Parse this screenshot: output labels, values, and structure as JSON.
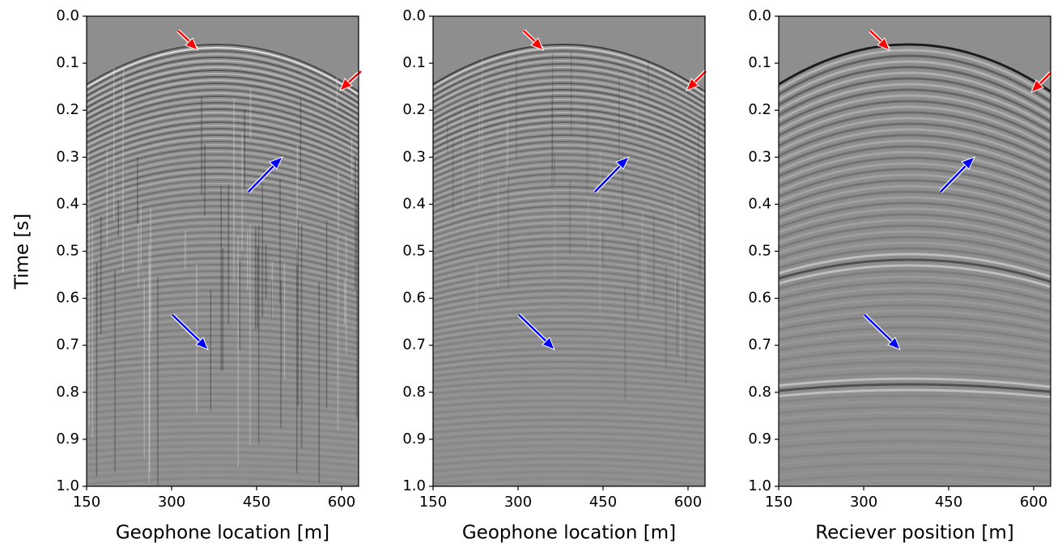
{
  "chart_data": [
    {
      "type": "image",
      "colormap": "gray",
      "x_label": "Geophone location [m]",
      "y_label": "Time [s]",
      "xlim": [
        150,
        630
      ],
      "ylim": [
        0,
        1
      ],
      "y_inverted": true,
      "xticks": [
        150,
        300,
        450,
        600
      ],
      "yticks": [
        {
          "value": 0,
          "label": "0.0"
        },
        0.1,
        0.2,
        0.3,
        0.4,
        0.5,
        0.6,
        0.7,
        0.8,
        0.9,
        {
          "value": 1,
          "label": "1.0"
        }
      ]
    },
    {
      "type": "image",
      "colormap": "gray",
      "x_label": "Geophone location [m]",
      "xlim": [
        150,
        630
      ],
      "ylim": [
        0,
        1
      ],
      "y_inverted": true,
      "xticks": [
        150,
        300,
        450,
        600
      ],
      "yticks": [
        {
          "value": 0,
          "label": "0.0"
        },
        0.1,
        0.2,
        0.3,
        0.4,
        0.5,
        0.6,
        0.7,
        0.8,
        0.9,
        {
          "value": 1,
          "label": "1.0"
        }
      ]
    },
    {
      "type": "image",
      "colormap": "gray",
      "x_label": "Reciever position [m]",
      "xlim": [
        150,
        630
      ],
      "ylim": [
        0,
        1
      ],
      "y_inverted": true,
      "xticks": [
        150,
        300,
        450,
        600
      ],
      "yticks": [
        {
          "value": 0,
          "label": "0.0"
        },
        0.1,
        0.2,
        0.3,
        0.4,
        0.5,
        0.6,
        0.7,
        0.8,
        0.9,
        {
          "value": 1,
          "label": "1.0"
        }
      ]
    }
  ]
}
